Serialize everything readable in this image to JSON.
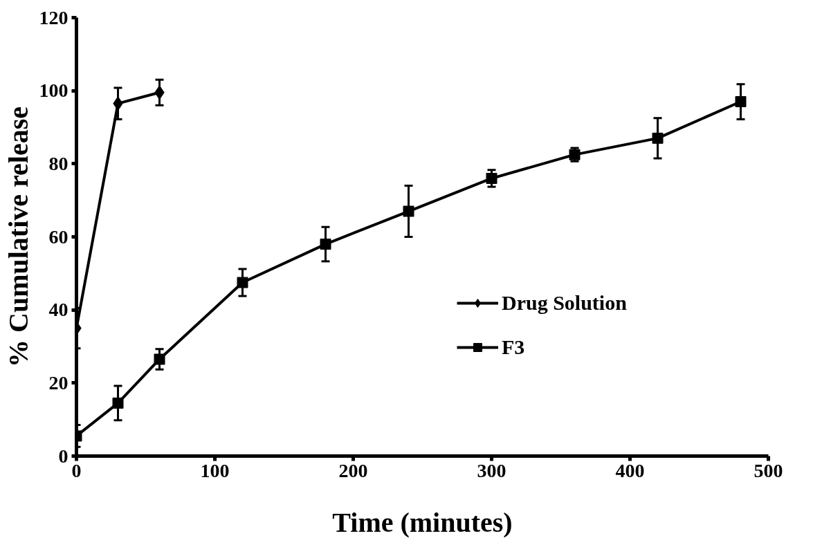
{
  "chart_data": {
    "type": "line",
    "xlabel": "Time (minutes)",
    "ylabel": "% Cumulative release",
    "xlim": [
      0,
      500
    ],
    "ylim": [
      0,
      120
    ],
    "xticks": [
      0,
      100,
      200,
      300,
      400,
      500
    ],
    "yticks": [
      0,
      20,
      40,
      60,
      80,
      100,
      120
    ],
    "grid": false,
    "legend": "right",
    "series": [
      {
        "name": "Drug Solution",
        "color": "#000000",
        "marker": "diamond",
        "x": [
          0,
          30,
          60
        ],
        "values": [
          35,
          96.5,
          99.5
        ],
        "errors": [
          5.5,
          4.3,
          3.5
        ]
      },
      {
        "name": "F3",
        "color": "#000000",
        "marker": "square",
        "x": [
          0,
          30,
          60,
          120,
          180,
          240,
          300,
          360,
          420,
          480
        ],
        "values": [
          5.5,
          14.5,
          26.5,
          47.5,
          58,
          67,
          76,
          82.5,
          87,
          97
        ],
        "errors": [
          3,
          4.7,
          2.8,
          3.7,
          4.7,
          7,
          2.3,
          1.8,
          5.5,
          4.8
        ]
      }
    ]
  }
}
